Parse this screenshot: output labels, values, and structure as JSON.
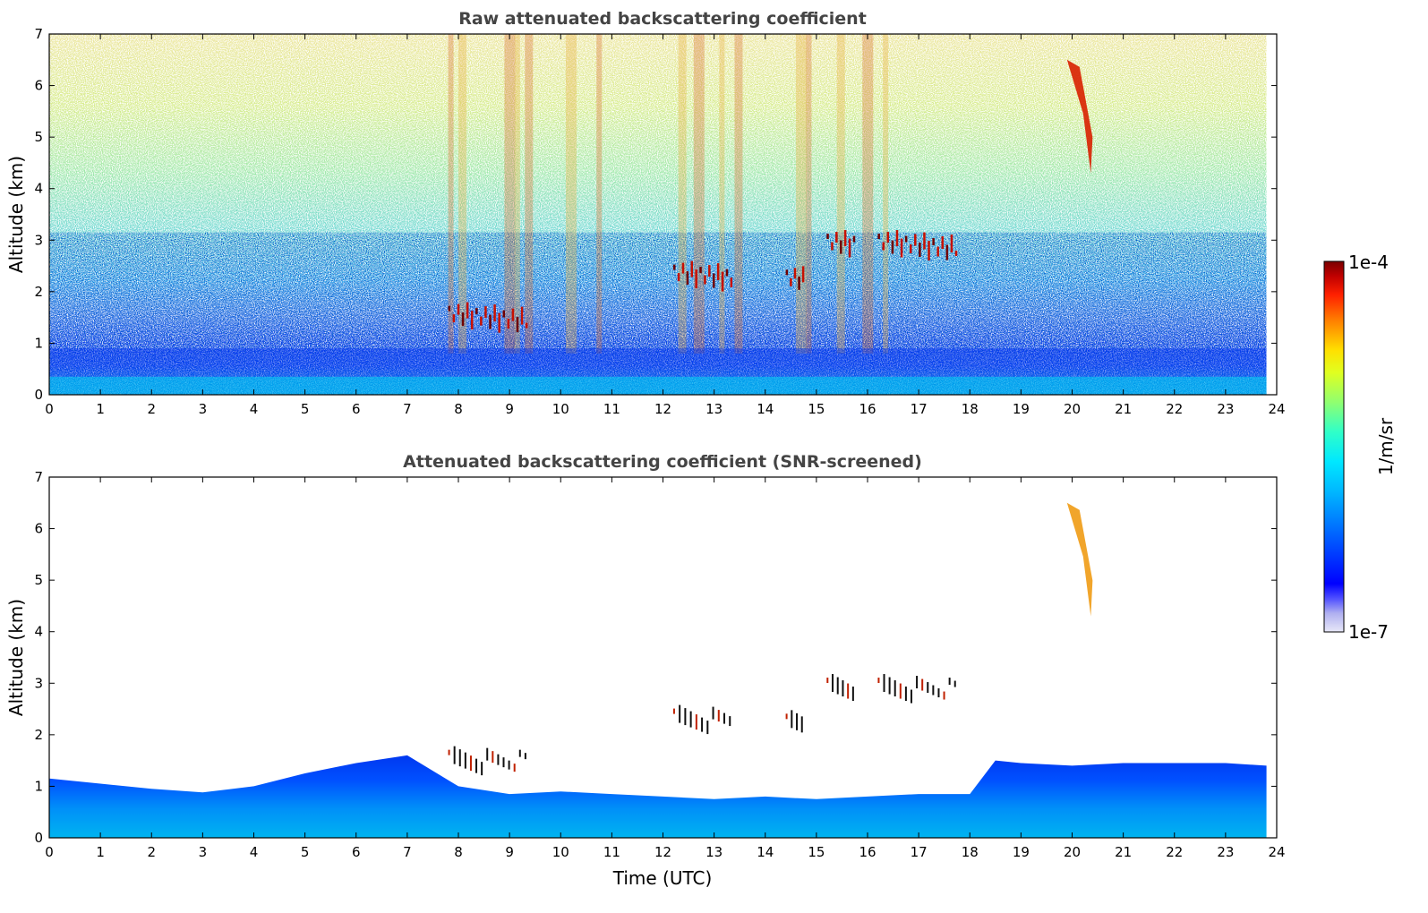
{
  "chart_data": [
    {
      "type": "heatmap",
      "title": "Raw attenuated backscattering coefficient",
      "xlabel": "",
      "ylabel": "Altitude (km)",
      "xlim": [
        0,
        24
      ],
      "ylim": [
        0,
        7
      ],
      "x_ticks": [
        "0",
        "1",
        "2",
        "3",
        "4",
        "5",
        "6",
        "7",
        "8",
        "9",
        "10",
        "11",
        "12",
        "13",
        "14",
        "15",
        "16",
        "17",
        "18",
        "19",
        "20",
        "21",
        "22",
        "23",
        "24"
      ],
      "y_ticks": [
        "0",
        "1",
        "2",
        "3",
        "4",
        "5",
        "6",
        "7"
      ],
      "data_end_time": 23.8,
      "features": [
        {
          "kind": "boundary_layer",
          "top_km": 1.0,
          "level": "high"
        },
        {
          "kind": "cloud",
          "t_start": 7.8,
          "t_end": 9.4,
          "alt_km": 1.5
        },
        {
          "kind": "cloud",
          "t_start": 12.2,
          "t_end": 13.4,
          "alt_km": 2.3
        },
        {
          "kind": "cloud",
          "t_start": 14.4,
          "t_end": 14.8,
          "alt_km": 2.2
        },
        {
          "kind": "cloud",
          "t_start": 15.2,
          "t_end": 15.8,
          "alt_km": 2.9
        },
        {
          "kind": "cloud",
          "t_start": 16.2,
          "t_end": 17.8,
          "alt_km": 2.9
        },
        {
          "kind": "cirrus",
          "t_start": 19.9,
          "t_end": 20.4,
          "alt_top_km": 6.5,
          "alt_bottom_km": 4.3
        }
      ]
    },
    {
      "type": "heatmap",
      "title": "Attenuated backscattering coefficient (SNR-screened)",
      "xlabel": "Time (UTC)",
      "ylabel": "Altitude (km)",
      "xlim": [
        0,
        24
      ],
      "ylim": [
        0,
        7
      ],
      "x_ticks": [
        "0",
        "1",
        "2",
        "3",
        "4",
        "5",
        "6",
        "7",
        "8",
        "9",
        "10",
        "11",
        "12",
        "13",
        "14",
        "15",
        "16",
        "17",
        "18",
        "19",
        "20",
        "21",
        "22",
        "23",
        "24"
      ],
      "y_ticks": [
        "0",
        "1",
        "2",
        "3",
        "4",
        "5",
        "6",
        "7"
      ],
      "data_end_time": 23.8,
      "boundary_layer_top_km": [
        [
          0,
          1.15
        ],
        [
          1,
          1.05
        ],
        [
          2,
          0.95
        ],
        [
          3,
          0.88
        ],
        [
          4,
          1.0
        ],
        [
          5,
          1.25
        ],
        [
          6,
          1.45
        ],
        [
          7,
          1.6
        ],
        [
          8,
          1.0
        ],
        [
          9,
          0.85
        ],
        [
          10,
          0.9
        ],
        [
          11,
          0.85
        ],
        [
          12,
          0.8
        ],
        [
          13,
          0.75
        ],
        [
          14,
          0.8
        ],
        [
          15,
          0.75
        ],
        [
          16,
          0.8
        ],
        [
          17,
          0.85
        ],
        [
          18,
          0.85
        ],
        [
          18.5,
          1.5
        ],
        [
          19,
          1.45
        ],
        [
          20,
          1.4
        ],
        [
          21,
          1.45
        ],
        [
          22,
          1.45
        ],
        [
          23,
          1.45
        ],
        [
          23.8,
          1.4
        ]
      ]
    }
  ],
  "colorbar": {
    "label": "1/m/sr",
    "max_label": "1e-4",
    "min_label": "1e-7",
    "scale": "log",
    "range": [
      1e-07,
      0.0001
    ],
    "colors": [
      "#e6e6f5",
      "#b3b3f0",
      "#6666ff",
      "#0000ff",
      "#0055ff",
      "#00aaff",
      "#00ddff",
      "#33ffcc",
      "#99ff66",
      "#ffff00",
      "#ffaa00",
      "#ff3300",
      "#b30000",
      "#800000"
    ]
  }
}
